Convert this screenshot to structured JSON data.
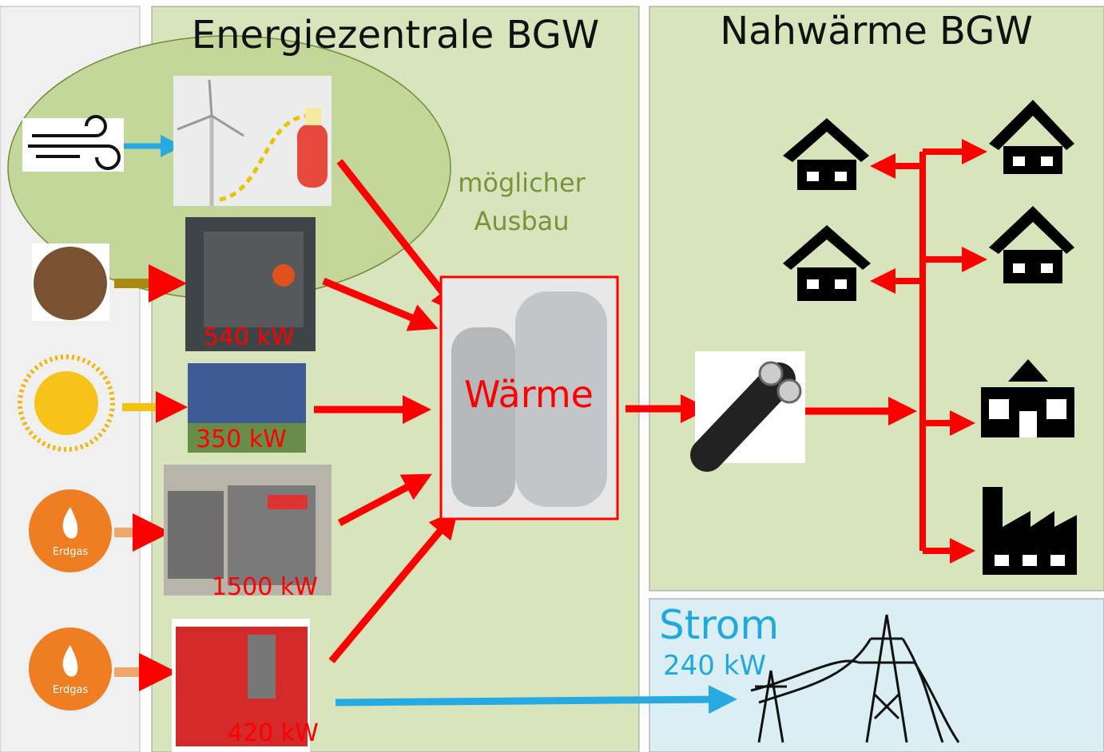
{
  "header": {
    "left_title": "Energiezentrale BGW",
    "right_title": "Nahwärme BGW"
  },
  "expansion_note": [
    "möglicher",
    "Ausbau"
  ],
  "sources": [
    {
      "capacity": "540 kW"
    },
    {
      "capacity": "350 kW"
    },
    {
      "capacity": "1500 kW"
    },
    {
      "capacity": "420 kW"
    }
  ],
  "gas_icons": [
    "Erdgas",
    "Erdgas"
  ],
  "storage": "Wärme",
  "power": {
    "title": "Strom",
    "capacity": "240 kW"
  }
}
